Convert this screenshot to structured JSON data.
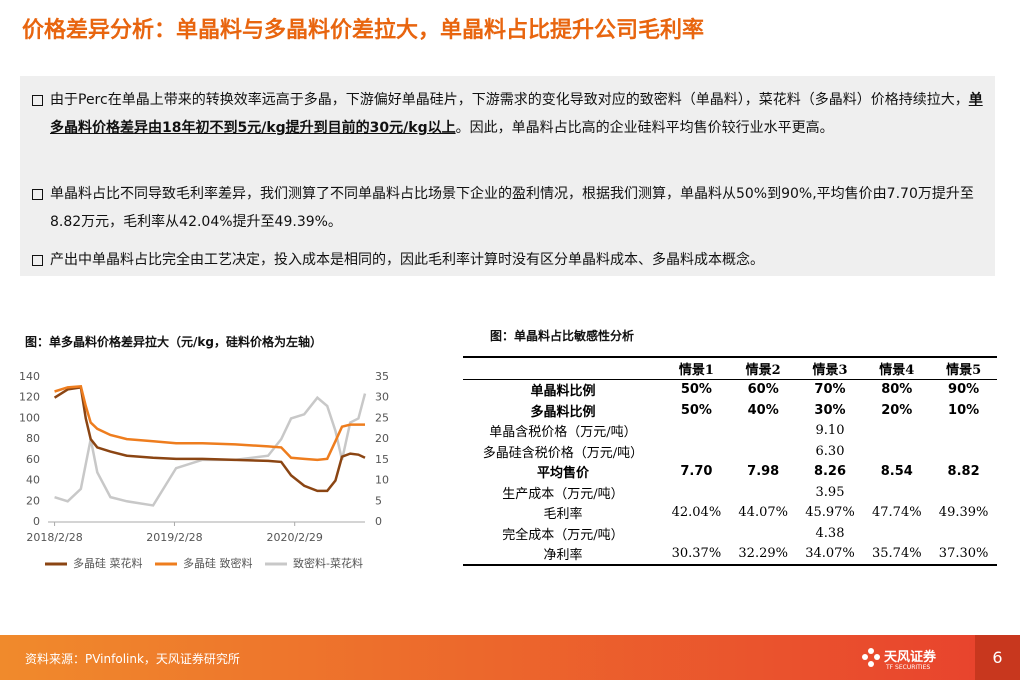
{
  "header": {
    "title": "价格差异分析：单晶料与多晶料价差拉大，单晶料占比提升公司毛利率"
  },
  "bullets": [
    [
      "由于Perc在单晶上带来的转换效率远高于多晶，下游偏好单晶硅片，下游需求的变化导致对应的致密料（单晶料），菜花料（多晶料）价格持续拉大，",
      "单多晶料价格差异由18年初不到5元/kg提升到目前的30元/kg以上",
      "。因此，单晶料占比高的企业硅料平均售价较行业水平更高。"
    ],
    [
      "单晶料占比不同导致毛利率差异，我们测算了不同单晶料占比场景下企业的盈利情况，根据我们测算，单晶料从50%到90%,平均售价由7.70万提升至8.82万元，毛利率从42.04%提升至49.39%。"
    ],
    [
      "产出中单晶料占比完全由工艺决定，投入成本是相同的，因此毛利率计算时没有区分单晶料成本、多晶料成本概念。"
    ]
  ],
  "chart_data": {
    "type": "line",
    "title": "图：单多晶料价格差异拉大（元/kg，硅料价格为左轴）",
    "x": [
      0,
      40,
      80,
      95,
      110,
      130,
      170,
      220,
      300,
      370,
      450,
      550,
      650,
      690,
      720,
      760,
      800,
      830,
      855,
      875,
      900,
      925,
      945
    ],
    "xlim": [
      -20,
      945
    ],
    "xticks": [
      {
        "value": 0,
        "label": "2018/2/28"
      },
      {
        "value": 365,
        "label": "2019/2/28"
      },
      {
        "value": 731,
        "label": "2020/2/29"
      }
    ],
    "ylim": [
      0,
      140
    ],
    "yticks": [
      0,
      20,
      40,
      60,
      80,
      100,
      120,
      140
    ],
    "y2lim": [
      0,
      35
    ],
    "y2ticks": [
      0,
      5,
      10,
      15,
      20,
      25,
      30,
      35
    ],
    "series": [
      {
        "name": "多晶硅 菜花料",
        "color": "#8b4513",
        "values": [
          120,
          128,
          130,
          100,
          80,
          72,
          68,
          64,
          62,
          61,
          61,
          60,
          59,
          58,
          45,
          35,
          30,
          30,
          40,
          63,
          66,
          65,
          62
        ]
      },
      {
        "name": "多晶硅 致密料",
        "color": "#ee7d1e",
        "values": [
          126,
          130,
          131,
          112,
          96,
          90,
          84,
          80,
          78,
          76,
          76,
          75,
          73,
          72,
          62,
          61,
          60,
          61,
          78,
          92,
          94,
          94,
          94
        ]
      },
      {
        "name": "致密料-菜花料",
        "color": "#c8c8c8",
        "axis": "y2",
        "values": [
          6,
          5,
          8,
          14,
          20,
          12,
          6,
          5,
          4,
          13,
          15,
          15,
          16,
          20,
          25,
          26,
          30,
          28,
          22,
          15,
          24,
          25,
          31
        ]
      }
    ]
  },
  "table": {
    "title": "图：单晶料占比敏感性分析",
    "header": [
      "情景1",
      "情景2",
      "情景3",
      "情景4",
      "情景5"
    ],
    "rows": [
      {
        "label": "单晶料比例",
        "cells": [
          "50%",
          "60%",
          "70%",
          "80%",
          "90%"
        ]
      },
      {
        "label": "多晶料比例",
        "cells": [
          "50%",
          "40%",
          "30%",
          "20%",
          "10%"
        ]
      },
      {
        "label": "单晶含税价格（万元/吨）",
        "merged": "9.10"
      },
      {
        "label": "多晶硅含税价格（万元/吨）",
        "merged": "6.30"
      },
      {
        "label": "平均售价",
        "cells": [
          "7.70",
          "7.98",
          "8.26",
          "8.54",
          "8.82"
        ]
      },
      {
        "label": "生产成本（万元/吨）",
        "merged": "3.95"
      },
      {
        "label": "毛利率",
        "cells": [
          "42.04%",
          "44.07%",
          "45.97%",
          "47.74%",
          "49.39%"
        ]
      },
      {
        "label": "完全成本（万元/吨）",
        "merged": "4.38"
      },
      {
        "label": "净利率",
        "cells": [
          "30.37%",
          "32.29%",
          "34.07%",
          "35.74%",
          "37.30%"
        ]
      }
    ]
  },
  "footer": {
    "source": "资料来源：PVinfolink，天风证券研究所",
    "logo": "天风证券",
    "logo_en": "TF SECURITIES",
    "page": "6"
  }
}
